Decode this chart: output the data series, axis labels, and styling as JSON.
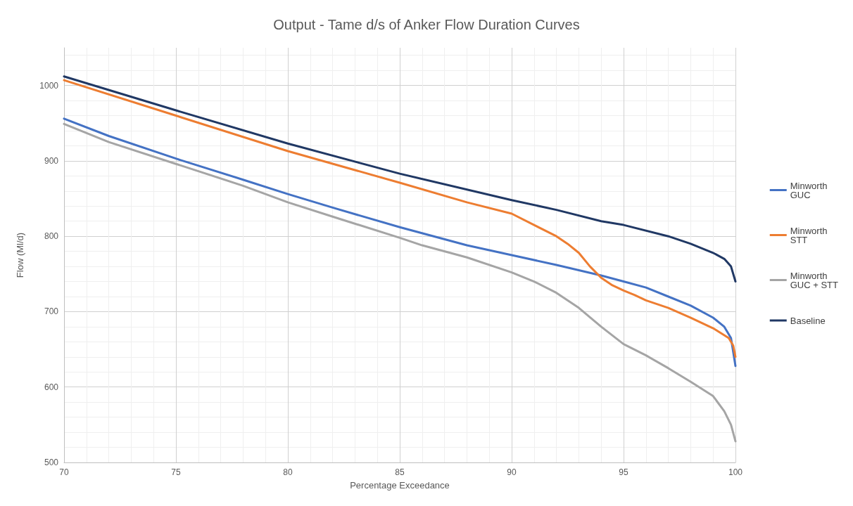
{
  "chart_data": {
    "type": "line",
    "title": "Output - Tame d/s of Anker Flow Duration Curves",
    "xlabel": "Percentage Exceedance",
    "ylabel": "Flow (Ml/d)",
    "xlim": [
      70,
      100
    ],
    "xticks": [
      70,
      75,
      80,
      85,
      90,
      95,
      100
    ],
    "ylim": [
      500,
      1050
    ],
    "yticks": [
      500,
      600,
      700,
      800,
      900,
      1000
    ],
    "grid": true,
    "legend": "right",
    "marker": "none",
    "line_style": "solid",
    "series": [
      {
        "name": "Minworth GUC",
        "color": "#4472c4",
        "x": [
          70,
          72,
          75,
          78,
          80,
          82,
          85,
          88,
          90,
          92,
          94,
          95,
          96,
          97,
          98,
          99,
          99.5,
          99.8,
          100
        ],
        "values": [
          956,
          933,
          903,
          875,
          856,
          838,
          812,
          788,
          775,
          762,
          748,
          740,
          732,
          720,
          708,
          692,
          680,
          665,
          628
        ]
      },
      {
        "name": "Minworth STT",
        "color": "#ed7d31",
        "x": [
          70,
          75,
          80,
          85,
          88,
          90,
          91,
          92,
          92.5,
          93,
          93.5,
          94,
          94.5,
          95,
          95.5,
          96,
          97,
          98,
          99,
          99.7,
          99.9,
          100
        ],
        "values": [
          1007,
          960,
          913,
          871,
          845,
          830,
          815,
          800,
          790,
          778,
          760,
          745,
          735,
          728,
          722,
          715,
          705,
          692,
          678,
          665,
          655,
          640
        ]
      },
      {
        "name": "Minworth GUC + STT",
        "color": "#a5a5a5",
        "x": [
          70,
          72,
          75,
          78,
          80,
          82,
          85,
          86,
          88,
          90,
          91,
          92,
          93,
          94,
          95,
          96,
          97,
          98,
          99,
          99.5,
          99.8,
          100
        ],
        "values": [
          949,
          925,
          896,
          867,
          845,
          826,
          798,
          788,
          772,
          752,
          740,
          725,
          705,
          680,
          657,
          642,
          625,
          607,
          588,
          568,
          550,
          528
        ]
      },
      {
        "name": "Baseline",
        "color": "#203864",
        "x": [
          70,
          75,
          80,
          85,
          90,
          92,
          94,
          95,
          97,
          98,
          99,
          99.5,
          99.8,
          100
        ],
        "values": [
          1012,
          967,
          923,
          883,
          848,
          835,
          820,
          815,
          800,
          790,
          778,
          770,
          760,
          740
        ]
      }
    ]
  }
}
